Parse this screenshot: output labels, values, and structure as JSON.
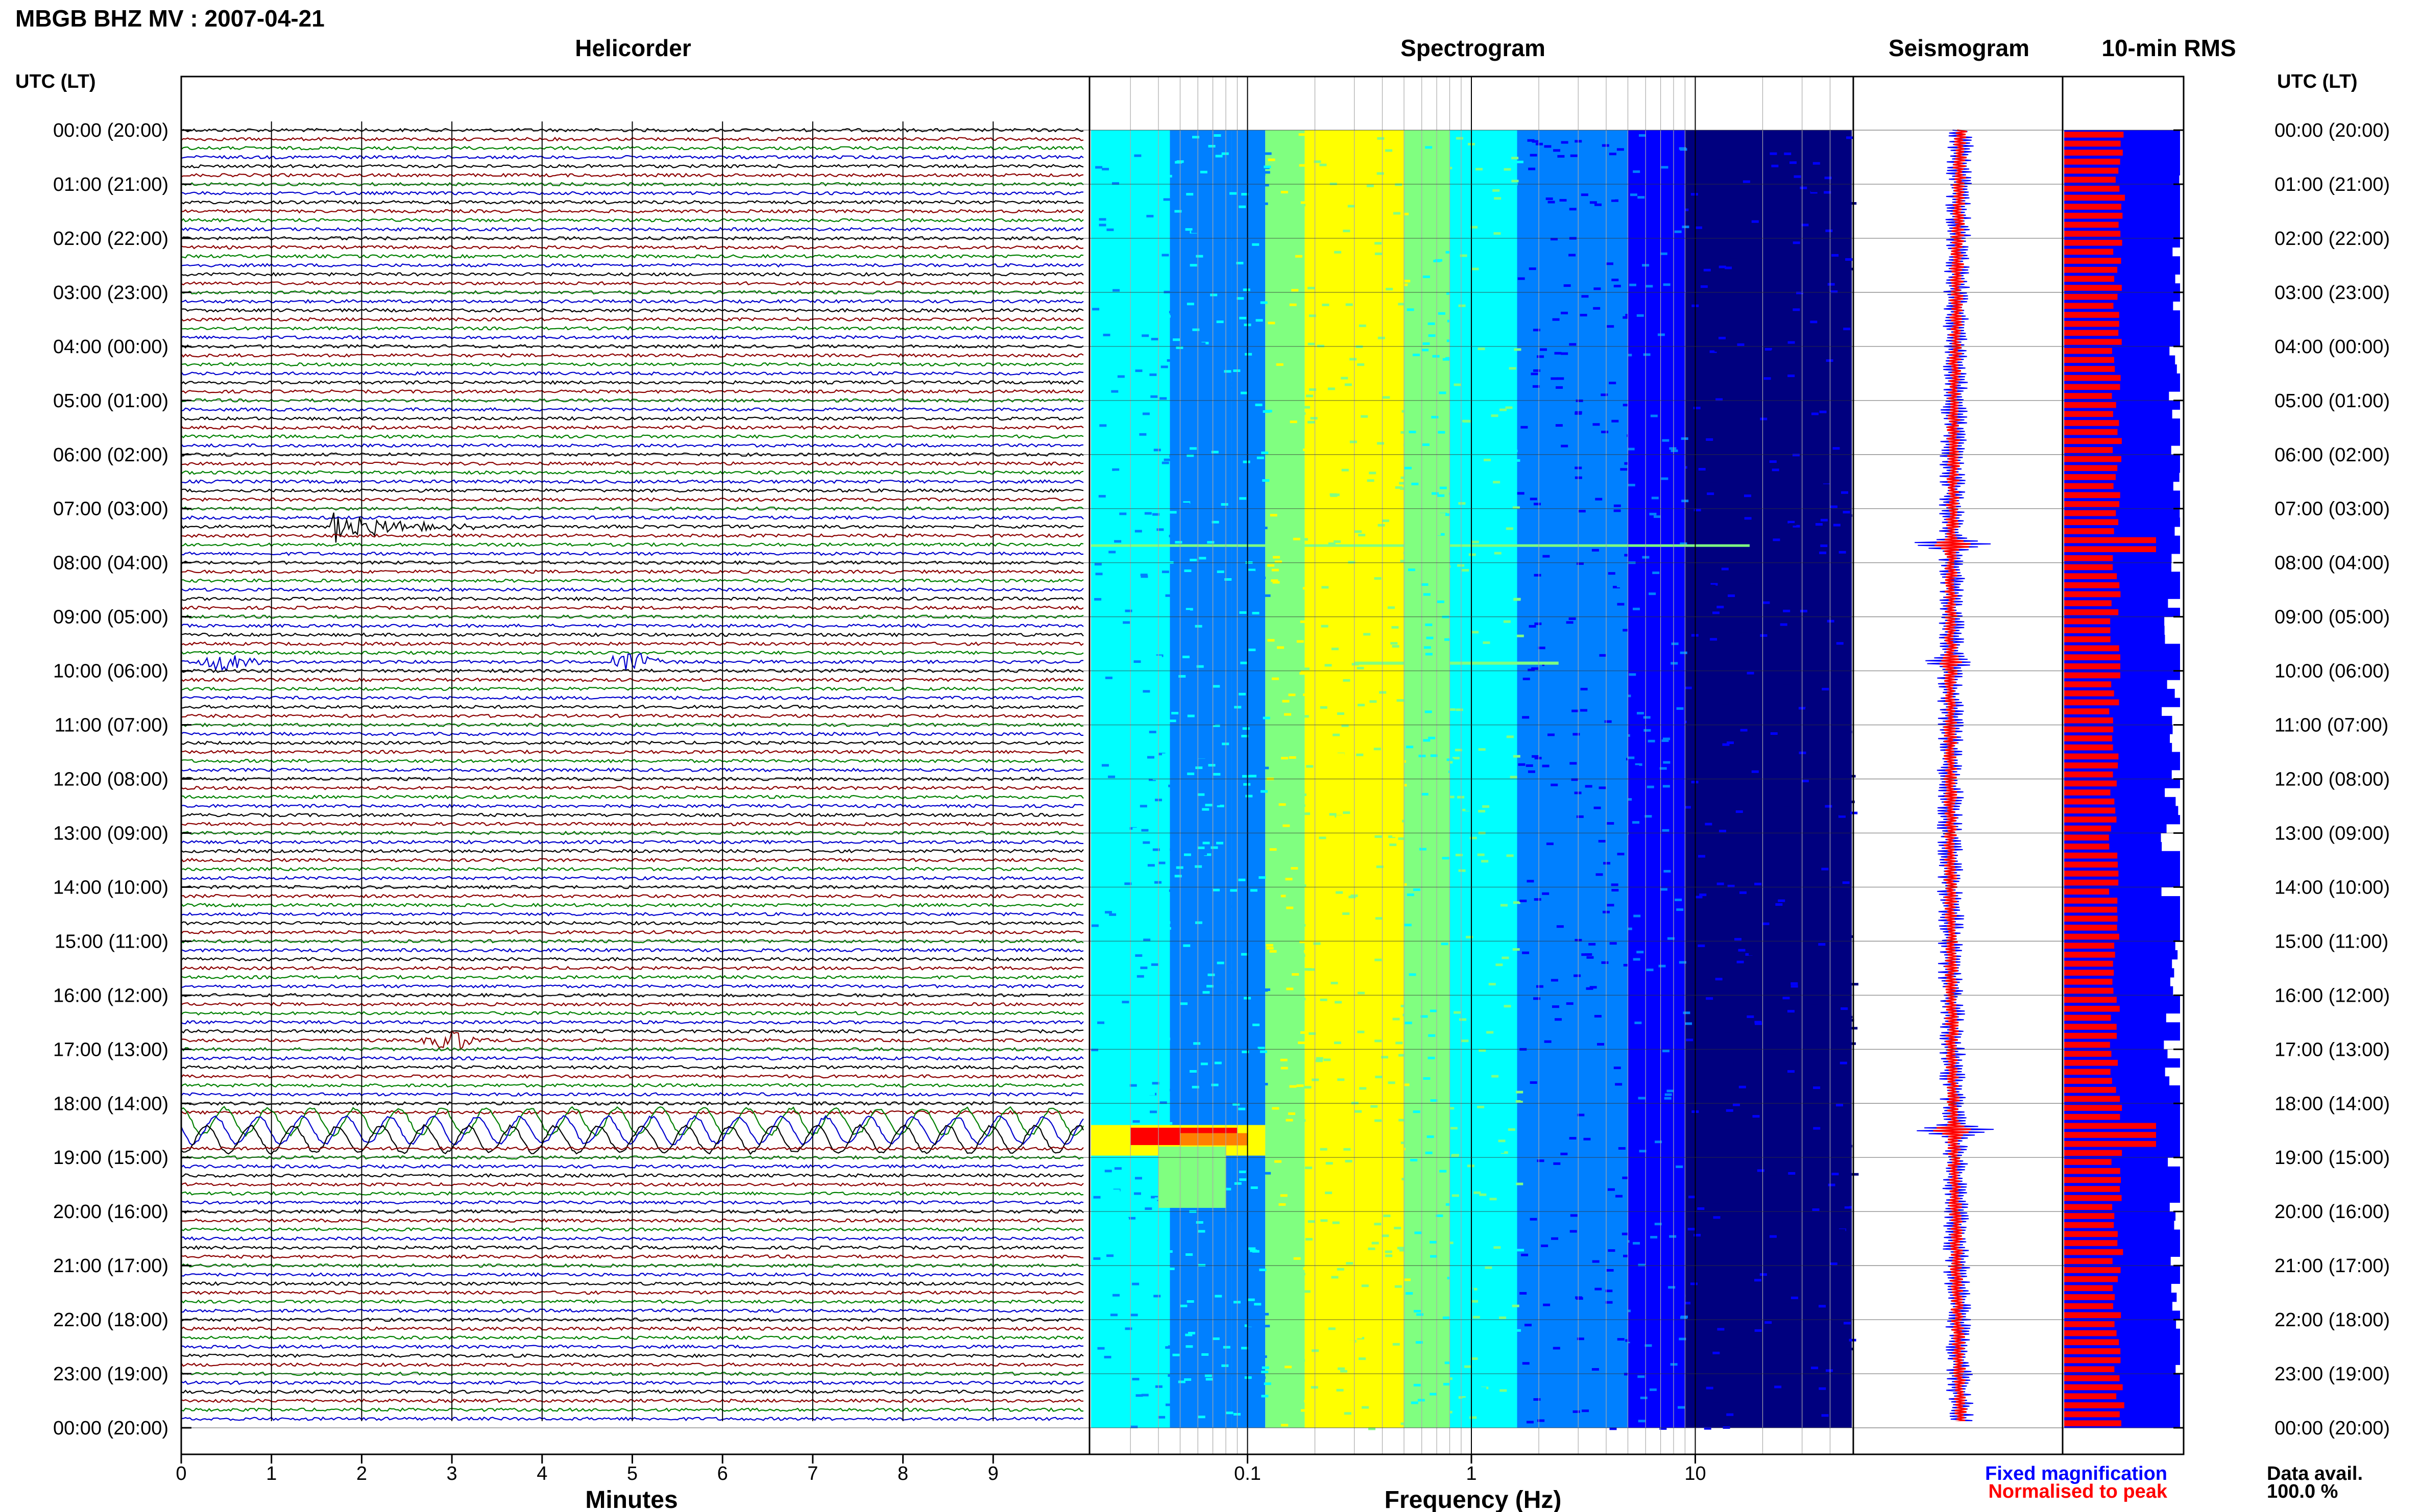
{
  "header": {
    "station_title": "MBGB BHZ MV : 2007-04-21",
    "utc_label_left": "UTC (LT)",
    "utc_label_right": "UTC (LT)"
  },
  "panels": {
    "helicorder": {
      "title": "Helicorder",
      "xlabel": "Minutes"
    },
    "spectrogram": {
      "title": "Spectrogram",
      "xlabel": "Frequency (Hz)"
    },
    "seismogram": {
      "title": "Seismogram"
    },
    "rms": {
      "title": "10-min RMS"
    }
  },
  "hour_labels": [
    "00:00 (20:00)",
    "01:00 (21:00)",
    "02:00 (22:00)",
    "03:00 (23:00)",
    "04:00 (00:00)",
    "05:00 (01:00)",
    "06:00 (02:00)",
    "07:00 (03:00)",
    "08:00 (04:00)",
    "09:00 (05:00)",
    "10:00 (06:00)",
    "11:00 (07:00)",
    "12:00 (08:00)",
    "13:00 (09:00)",
    "14:00 (10:00)",
    "15:00 (11:00)",
    "16:00 (12:00)",
    "17:00 (13:00)",
    "18:00 (14:00)",
    "19:00 (15:00)",
    "20:00 (16:00)",
    "21:00 (17:00)",
    "22:00 (18:00)",
    "23:00 (19:00)",
    "00:00 (20:00)"
  ],
  "legend": {
    "fixed": "Fixed magnification",
    "normalised": "Normalised to peak",
    "fixed_color": "#0000ff",
    "normalised_color": "#ff0000"
  },
  "data_availability": {
    "label": "Data avail.",
    "value": "100.0 %"
  },
  "chart_data": [
    {
      "type": "line",
      "panel": "helicorder",
      "x_ticks": [
        "0",
        "1",
        "2",
        "3",
        "4",
        "5",
        "6",
        "7",
        "8",
        "9"
      ],
      "xlim": [
        0,
        10
      ],
      "trace_colors": [
        "#000000",
        "#8b0000",
        "#008000",
        "#0000cd"
      ],
      "traces_per_hour": 6,
      "events": [
        {
          "hour": 7.33,
          "minute": 1.65,
          "kind": "earthquake"
        },
        {
          "hour": 9.83,
          "minute": 0.5,
          "kind": "burst"
        },
        {
          "hour": 9.83,
          "minute": 5.0,
          "kind": "burst"
        },
        {
          "hour": 16.83,
          "minute": 3.0,
          "kind": "burst"
        },
        {
          "hour": 18.5,
          "minute": 0,
          "kind": "long-period oscillation"
        }
      ]
    },
    {
      "type": "heatmap",
      "panel": "spectrogram",
      "x_scale": "log",
      "xlim": [
        0.02,
        50
      ],
      "x_ticks": [
        "0.1",
        "1",
        "10"
      ],
      "colormap": [
        "#00007f",
        "#0000ff",
        "#0080ff",
        "#00ffff",
        "#80ff80",
        "#ffff00",
        "#ff8000",
        "#ff0000"
      ]
    },
    {
      "type": "line",
      "panel": "seismogram",
      "series": [
        {
          "name": "Fixed magnification",
          "color": "#0000ff"
        },
        {
          "name": "Normalised to peak",
          "color": "#ff0000"
        }
      ]
    },
    {
      "type": "bar",
      "panel": "rms",
      "orientation": "horizontal",
      "bins_per_hour": 6,
      "series": [
        {
          "name": "Fixed magnification",
          "color": "#0000ff",
          "peaks": [
            {
              "hour": 7.66,
              "value": 1.0
            },
            {
              "hour": 9.83,
              "value": 0.5
            },
            {
              "hour": 18.5,
              "value": 1.0
            }
          ]
        },
        {
          "name": "Normalised to peak",
          "color": "#ff0000"
        }
      ]
    }
  ]
}
